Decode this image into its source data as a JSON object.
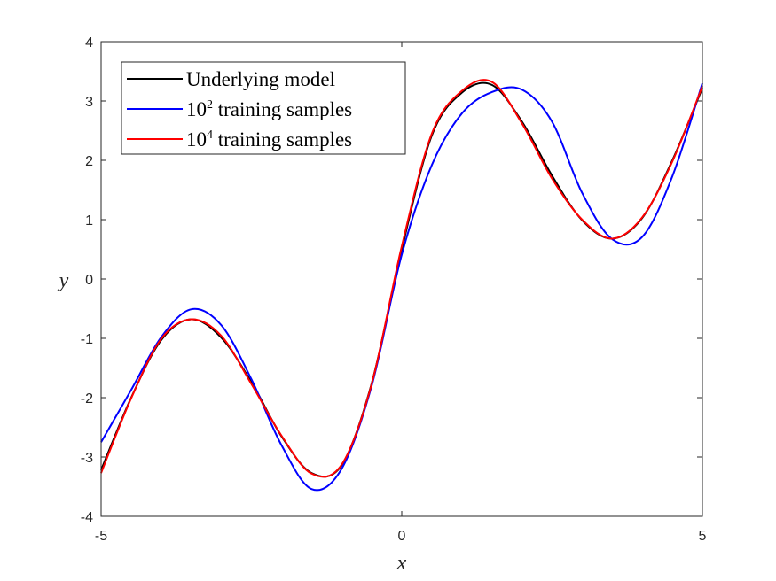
{
  "chart_data": {
    "type": "line",
    "xlabel": "x",
    "ylabel": "y",
    "xlim": [
      -5,
      5
    ],
    "ylim": [
      -4,
      3.9
    ],
    "xticks": [
      -5,
      0,
      5
    ],
    "yticks": [
      -4,
      -3,
      -2,
      -1,
      0,
      1,
      2,
      3,
      4
    ],
    "x_tick_labels": [
      "-5",
      "0",
      "5"
    ],
    "y_tick_labels": [
      "-4",
      "-3",
      "-2",
      "-1",
      "0",
      "1",
      "2",
      "3",
      "4"
    ],
    "grid": false,
    "legend_position": "top-left",
    "series": [
      {
        "name": "Underlying model",
        "legend_base": "Underlying model",
        "legend_sup": "",
        "legend_rest": "",
        "color": "#000000",
        "x": [
          -5,
          -4.5,
          -4,
          -3.5,
          -3,
          -2.5,
          -2,
          -1.5,
          -1,
          -0.5,
          0,
          0.5,
          1,
          1.5,
          2,
          2.5,
          3,
          3.5,
          4,
          4.5,
          5
        ],
        "y": [
          -3.22,
          -2.0,
          -1.03,
          -0.68,
          -0.99,
          -1.74,
          -2.65,
          -3.27,
          -3.14,
          -1.76,
          0.5,
          2.42,
          3.14,
          3.27,
          2.65,
          1.74,
          0.99,
          0.68,
          1.03,
          2.0,
          3.22
        ]
      },
      {
        "name": "10^2 training samples",
        "legend_base": "10",
        "legend_sup": "2",
        "legend_rest": " training samples",
        "color": "#0000ff",
        "x": [
          -5,
          -4.5,
          -4,
          -3.5,
          -3,
          -2.5,
          -2,
          -1.5,
          -1,
          -0.5,
          0,
          0.5,
          1,
          1.5,
          2,
          2.5,
          3,
          3.5,
          4,
          4.5,
          5
        ],
        "y": [
          -2.75,
          -1.87,
          -0.98,
          -0.51,
          -0.78,
          -1.69,
          -2.8,
          -3.54,
          -3.2,
          -1.8,
          0.41,
          1.92,
          2.79,
          3.15,
          3.19,
          2.65,
          1.45,
          0.67,
          0.71,
          1.73,
          3.3
        ]
      },
      {
        "name": "10^4 training samples",
        "legend_base": "10",
        "legend_sup": "4",
        "legend_rest": " training samples",
        "color": "#ff0000",
        "x": [
          -5,
          -4.5,
          -4,
          -3.5,
          -3,
          -2.5,
          -2,
          -1.5,
          -1,
          -0.5,
          0,
          0.5,
          1,
          1.5,
          2,
          2.5,
          3,
          3.5,
          4,
          4.5,
          5
        ],
        "y": [
          -3.27,
          -2.01,
          -1.01,
          -0.68,
          -0.96,
          -1.77,
          -2.64,
          -3.28,
          -3.13,
          -1.77,
          0.55,
          2.45,
          3.17,
          3.32,
          2.62,
          1.69,
          1.0,
          0.68,
          1.04,
          1.98,
          3.25
        ]
      }
    ]
  }
}
